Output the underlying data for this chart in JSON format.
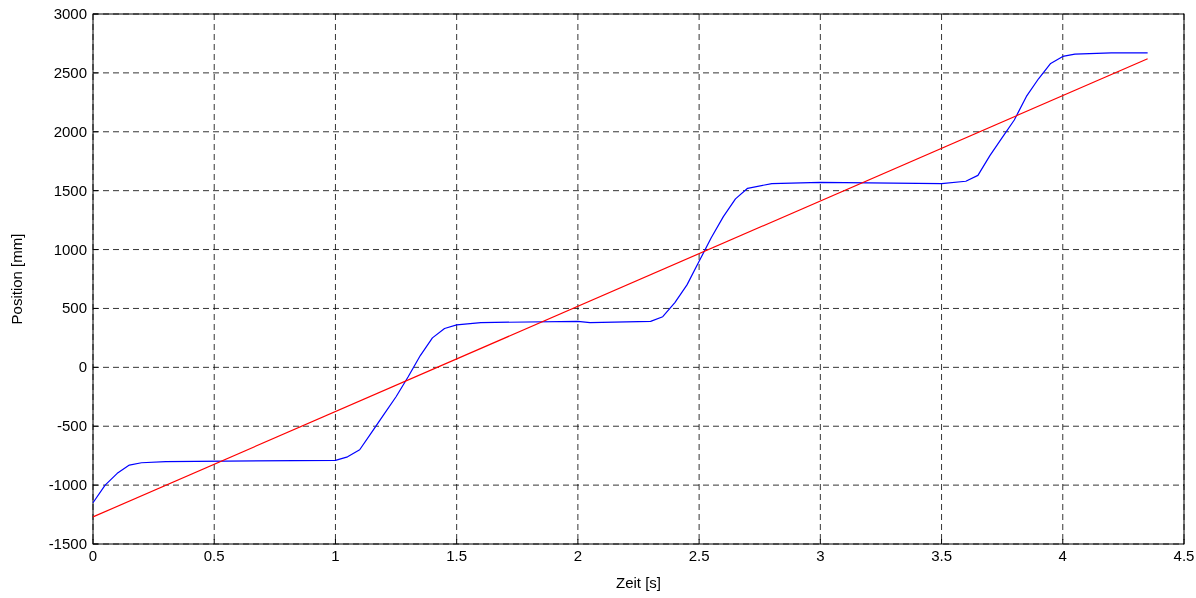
{
  "chart_data": {
    "type": "line",
    "xlabel": "Zeit [s]",
    "ylabel": "Position [mm]",
    "xlim": [
      0,
      4.5
    ],
    "xticks": [
      0,
      0.5,
      1,
      1.5,
      2,
      2.5,
      3,
      3.5,
      4,
      4.5
    ],
    "ylim": [
      -1500,
      3000
    ],
    "yticks": [
      -1500,
      -1000,
      -500,
      0,
      500,
      1000,
      1500,
      2000,
      2500,
      3000
    ],
    "grid": true,
    "line_style": "solid",
    "series": [
      {
        "color": "#0000ff",
        "x": [
          0,
          0.05,
          0.1,
          0.15,
          0.2,
          0.3,
          1.0,
          1.05,
          1.1,
          1.15,
          1.2,
          1.25,
          1.3,
          1.35,
          1.4,
          1.45,
          1.5,
          1.6,
          2.0,
          2.05,
          2.3,
          2.35,
          2.4,
          2.45,
          2.5,
          2.55,
          2.6,
          2.65,
          2.7,
          2.8,
          3.0,
          3.5,
          3.6,
          3.65,
          3.7,
          3.75,
          3.8,
          3.85,
          3.9,
          3.95,
          4.0,
          4.05,
          4.2,
          4.35
        ],
        "values": [
          -1150,
          -1000,
          -900,
          -830,
          -810,
          -800,
          -790,
          -760,
          -700,
          -550,
          -400,
          -250,
          -80,
          100,
          250,
          330,
          360,
          380,
          390,
          380,
          390,
          430,
          550,
          700,
          900,
          1100,
          1280,
          1430,
          1520,
          1560,
          1570,
          1560,
          1580,
          1630,
          1800,
          1950,
          2100,
          2300,
          2450,
          2580,
          2640,
          2660,
          2670,
          2670
        ]
      },
      {
        "color": "#ff0000",
        "x": [
          0,
          4.35
        ],
        "values": [
          -1270,
          2620
        ]
      }
    ]
  }
}
